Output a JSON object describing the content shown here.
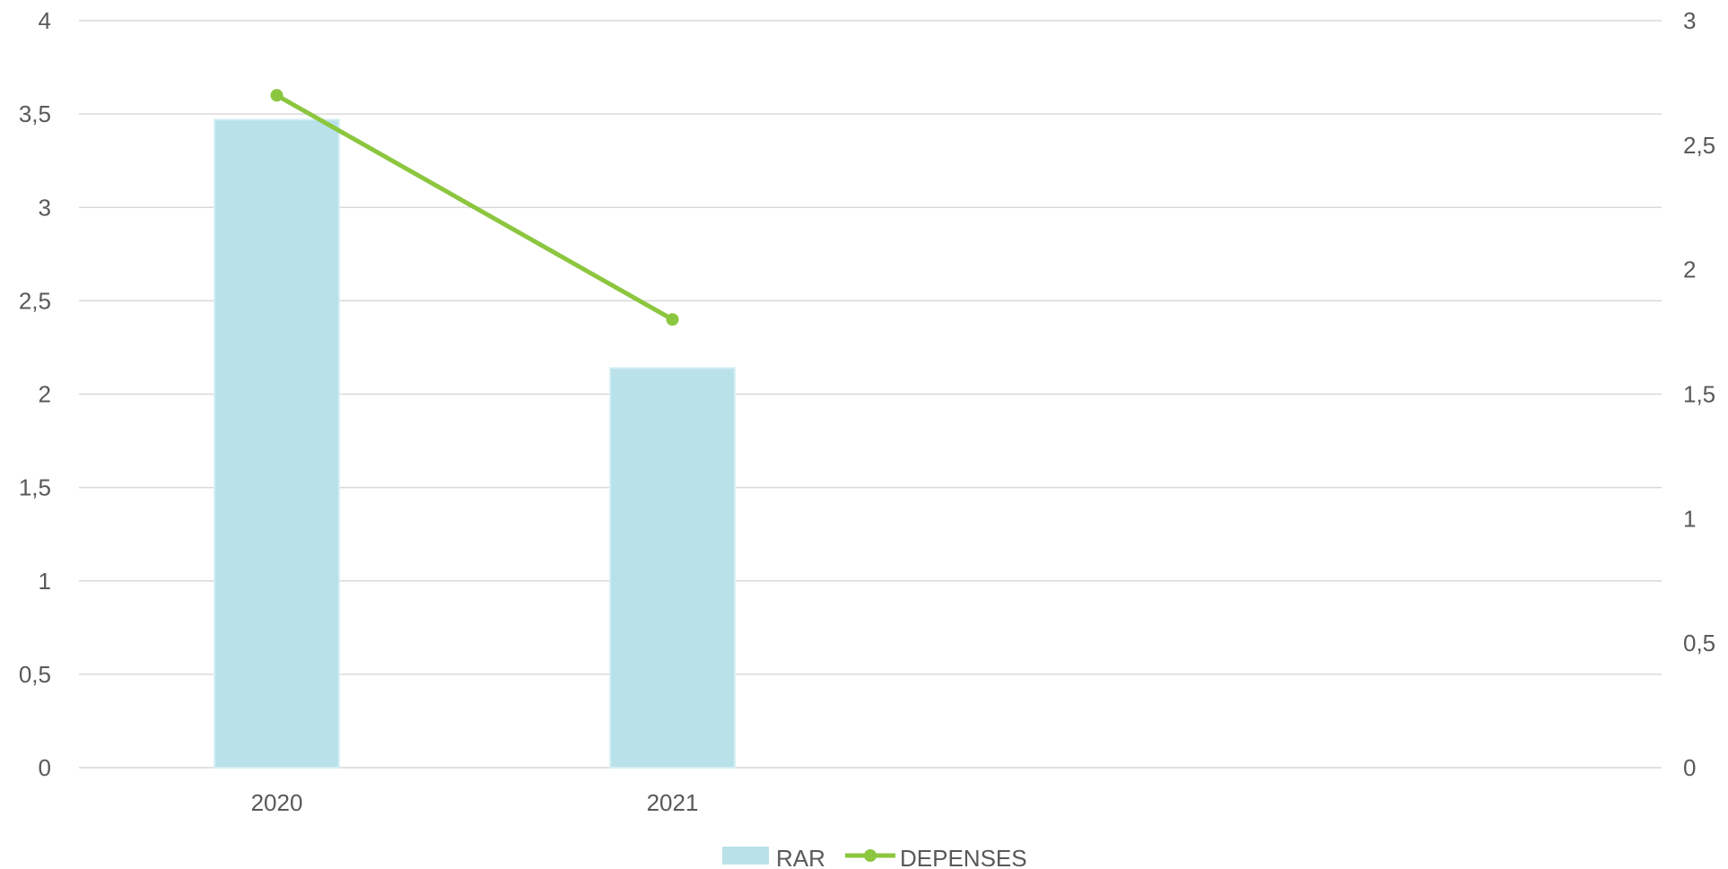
{
  "chart_data": {
    "type": "bar",
    "categories": [
      "2020",
      "2021",
      "",
      ""
    ],
    "series": [
      {
        "name": "RAR",
        "type": "bar",
        "axis": "left",
        "values": [
          3.47,
          2.14,
          null,
          null
        ]
      },
      {
        "name": "DEPENSES",
        "type": "line",
        "axis": "right",
        "values": [
          2.7,
          1.8,
          null,
          null
        ]
      }
    ],
    "ylim": [
      0,
      4
    ],
    "y2lim": [
      0,
      3
    ],
    "y_ticks": [
      "0",
      "0,5",
      "1",
      "1,5",
      "2",
      "2,5",
      "3",
      "3,5",
      "4"
    ],
    "y2_ticks": [
      "0",
      "0,5",
      "1",
      "1,5",
      "2",
      "2,5",
      "3"
    ],
    "grid": true,
    "legend_position": "bottom",
    "colors": {
      "bar": "#b9e1ea",
      "bar_edge": "#d6eff4",
      "line": "#8cc63f",
      "grid": "#d9d9d9",
      "text": "#595959"
    }
  }
}
